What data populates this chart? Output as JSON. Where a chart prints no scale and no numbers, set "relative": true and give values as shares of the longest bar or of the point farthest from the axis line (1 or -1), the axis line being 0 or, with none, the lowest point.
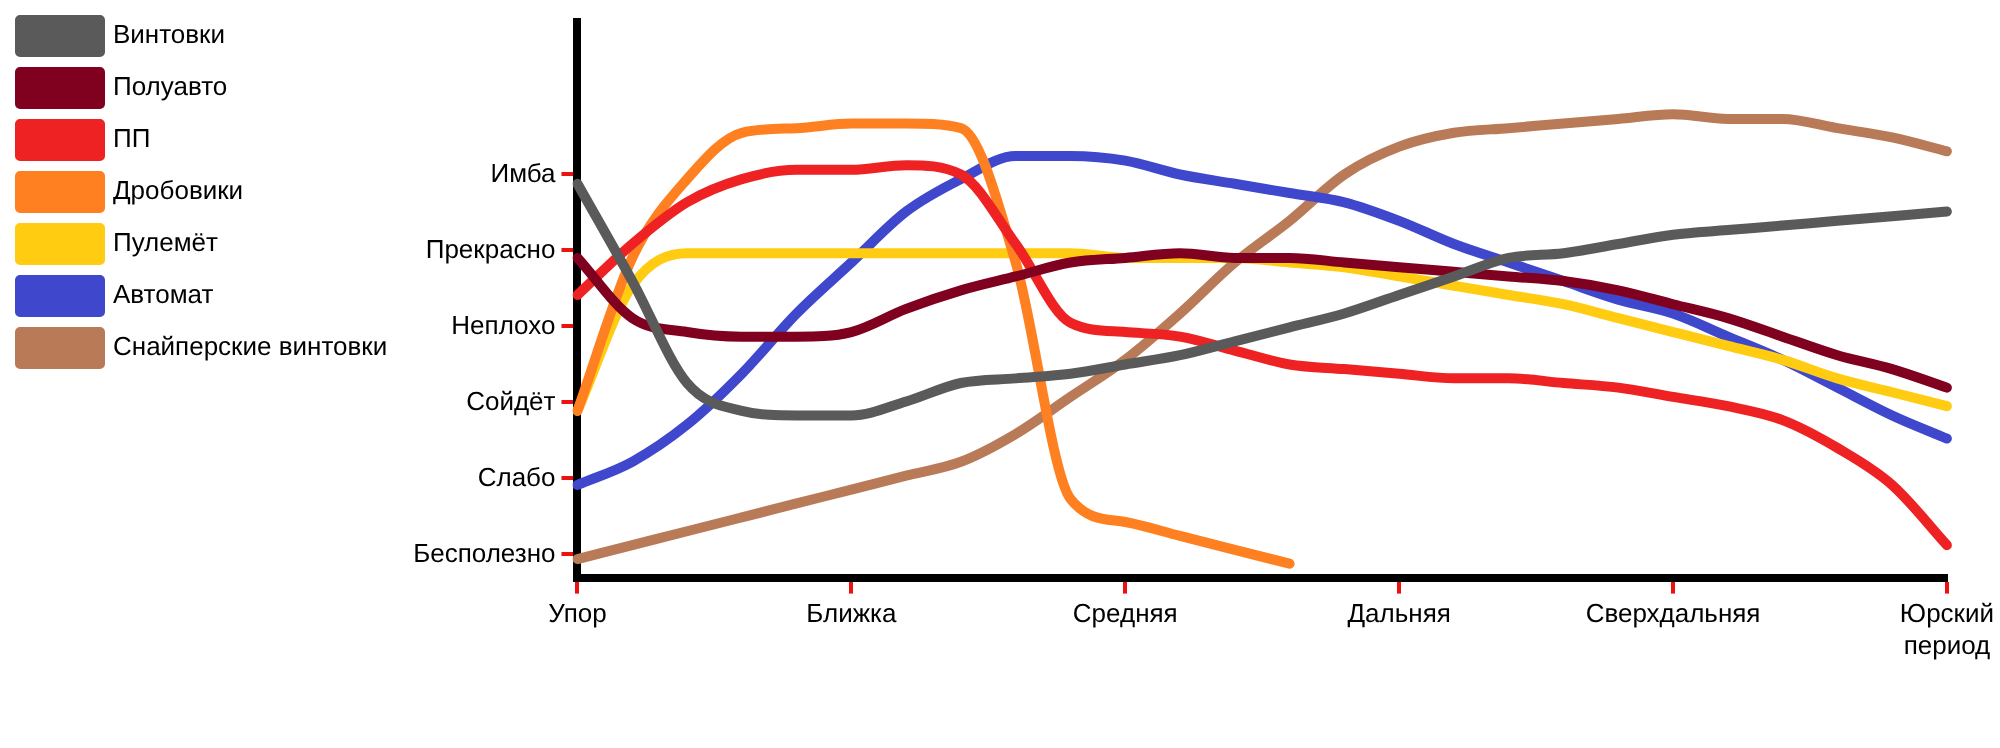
{
  "chart_data": {
    "type": "line",
    "legend": "top left",
    "grid": false,
    "marker": "none",
    "line_style": "solid",
    "relative": true,
    "categories": [
      "Упор",
      null,
      null,
      null,
      null,
      "Ближка",
      null,
      null,
      null,
      null,
      "Средняя",
      null,
      null,
      null,
      null,
      "Дальняя",
      null,
      null,
      null,
      null,
      "Сверхдальняя",
      null,
      null,
      null,
      null,
      "Юрский период"
    ],
    "annotations": [
      "Бесполезно",
      "Слабо",
      "Сойдёт",
      "Неплохо",
      "Прекрасно",
      "Имба"
    ],
    "series": [
      {
        "name": "Винтовки",
        "color": "#5a5a5a",
        "values": [
          0.85,
          0.64,
          0.42,
          0.36,
          0.35,
          0.35,
          0.38,
          0.42,
          0.43,
          0.44,
          0.46,
          0.48,
          0.51,
          0.54,
          0.57,
          0.61,
          0.65,
          0.69,
          0.7,
          0.72,
          0.74,
          0.75,
          0.76,
          0.77,
          0.78,
          0.79
        ]
      },
      {
        "name": "Полуавто",
        "color": "#800020",
        "values": [
          0.69,
          0.56,
          0.53,
          0.52,
          0.52,
          0.53,
          0.58,
          0.62,
          0.65,
          0.68,
          0.69,
          0.7,
          0.69,
          0.69,
          0.68,
          0.67,
          0.66,
          0.65,
          0.64,
          0.62,
          0.59,
          0.56,
          0.52,
          0.48,
          0.45,
          0.41
        ]
      },
      {
        "name": "ПП",
        "color": "#ee2222",
        "values": [
          0.61,
          0.72,
          0.81,
          0.86,
          0.88,
          0.88,
          0.89,
          0.87,
          0.72,
          0.55,
          0.53,
          0.52,
          0.49,
          0.46,
          0.45,
          0.44,
          0.43,
          0.43,
          0.42,
          0.41,
          0.39,
          0.37,
          0.34,
          0.28,
          0.2,
          0.07
        ]
      },
      {
        "name": "Дробовики",
        "color": "#ff8020",
        "values": [
          0.36,
          0.69,
          0.86,
          0.96,
          0.97,
          0.98,
          0.98,
          0.97,
          0.68,
          0.17,
          0.12,
          0.09,
          0.06,
          0.03,
          null,
          null,
          null,
          null,
          null,
          null,
          null,
          null,
          null,
          null,
          null,
          null
        ]
      },
      {
        "name": "Пулемёт",
        "color": "#ffcc11",
        "values": [
          0.36,
          0.63,
          0.7,
          0.7,
          0.7,
          0.7,
          0.7,
          0.7,
          0.7,
          0.7,
          0.69,
          0.69,
          0.69,
          0.68,
          0.67,
          0.65,
          0.63,
          0.61,
          0.59,
          0.56,
          0.53,
          0.5,
          0.47,
          0.43,
          0.4,
          0.37
        ]
      },
      {
        "name": "Автомат",
        "color": "#3f48cc",
        "values": [
          0.2,
          0.25,
          0.33,
          0.44,
          0.57,
          0.68,
          0.79,
          0.86,
          0.91,
          0.91,
          0.9,
          0.87,
          0.85,
          0.83,
          0.81,
          0.77,
          0.72,
          0.68,
          0.64,
          0.6,
          0.57,
          0.52,
          0.47,
          0.41,
          0.35,
          0.3
        ]
      },
      {
        "name": "Снайперские винтовки",
        "color": "#b97a57",
        "values": [
          0.04,
          0.07,
          0.1,
          0.13,
          0.16,
          0.19,
          0.22,
          0.25,
          0.31,
          0.39,
          0.47,
          0.57,
          0.68,
          0.77,
          0.87,
          0.93,
          0.96,
          0.97,
          0.98,
          0.99,
          1,
          0.99,
          0.99,
          0.97,
          0.95,
          0.92
        ]
      }
    ]
  }
}
